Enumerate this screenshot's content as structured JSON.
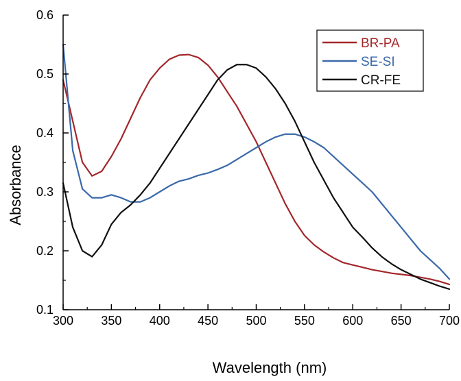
{
  "chart_data": {
    "type": "line",
    "title": "",
    "xlabel": "Wavelength (nm)",
    "ylabel": "Absorbance",
    "xlim": [
      300,
      700
    ],
    "ylim": [
      0.1,
      0.6
    ],
    "xticks": [
      300,
      350,
      400,
      450,
      500,
      550,
      600,
      650,
      700
    ],
    "yticks": [
      0.1,
      0.2,
      0.3,
      0.4,
      0.5,
      0.6
    ],
    "ytick_labels": [
      "0.1",
      "0.2",
      "0.3",
      "0.4",
      "0.5",
      "0.6"
    ],
    "grid": false,
    "legend_position": "top-right",
    "series": [
      {
        "name": "BR-PA",
        "color": "#a3272b",
        "x": [
          300,
          310,
          320,
          330,
          340,
          350,
          360,
          370,
          380,
          390,
          400,
          410,
          420,
          430,
          440,
          450,
          460,
          470,
          480,
          490,
          500,
          510,
          520,
          530,
          540,
          550,
          560,
          570,
          580,
          590,
          600,
          610,
          620,
          630,
          640,
          650,
          660,
          670,
          680,
          690,
          700
        ],
        "y": [
          0.49,
          0.42,
          0.35,
          0.327,
          0.335,
          0.36,
          0.39,
          0.425,
          0.46,
          0.49,
          0.51,
          0.525,
          0.532,
          0.533,
          0.528,
          0.515,
          0.495,
          0.47,
          0.445,
          0.415,
          0.385,
          0.35,
          0.315,
          0.28,
          0.25,
          0.226,
          0.21,
          0.198,
          0.188,
          0.18,
          0.176,
          0.172,
          0.168,
          0.165,
          0.162,
          0.16,
          0.158,
          0.155,
          0.152,
          0.148,
          0.143
        ]
      },
      {
        "name": "SE-SI",
        "color": "#3a69a8",
        "x": [
          300,
          310,
          320,
          330,
          340,
          350,
          360,
          370,
          380,
          390,
          400,
          410,
          420,
          430,
          440,
          450,
          460,
          470,
          480,
          490,
          500,
          510,
          520,
          530,
          540,
          550,
          560,
          570,
          580,
          590,
          600,
          610,
          620,
          630,
          640,
          650,
          660,
          670,
          680,
          690,
          700
        ],
        "y": [
          0.55,
          0.37,
          0.305,
          0.29,
          0.29,
          0.295,
          0.29,
          0.283,
          0.283,
          0.29,
          0.3,
          0.31,
          0.318,
          0.322,
          0.328,
          0.332,
          0.338,
          0.345,
          0.355,
          0.365,
          0.375,
          0.385,
          0.393,
          0.398,
          0.398,
          0.393,
          0.385,
          0.375,
          0.36,
          0.345,
          0.33,
          0.315,
          0.3,
          0.28,
          0.26,
          0.24,
          0.22,
          0.2,
          0.185,
          0.17,
          0.152
        ]
      },
      {
        "name": "CR-FE",
        "color": "#111111",
        "x": [
          300,
          310,
          320,
          330,
          340,
          350,
          360,
          370,
          380,
          390,
          400,
          410,
          420,
          430,
          440,
          450,
          460,
          470,
          480,
          490,
          500,
          510,
          520,
          530,
          540,
          550,
          560,
          570,
          580,
          590,
          600,
          610,
          620,
          630,
          640,
          650,
          660,
          670,
          680,
          690,
          700
        ],
        "y": [
          0.315,
          0.24,
          0.2,
          0.19,
          0.21,
          0.245,
          0.265,
          0.278,
          0.295,
          0.315,
          0.34,
          0.365,
          0.39,
          0.415,
          0.44,
          0.465,
          0.49,
          0.507,
          0.516,
          0.516,
          0.51,
          0.495,
          0.475,
          0.45,
          0.42,
          0.385,
          0.35,
          0.32,
          0.29,
          0.265,
          0.24,
          0.223,
          0.205,
          0.19,
          0.178,
          0.168,
          0.16,
          0.152,
          0.146,
          0.14,
          0.135
        ]
      }
    ]
  }
}
